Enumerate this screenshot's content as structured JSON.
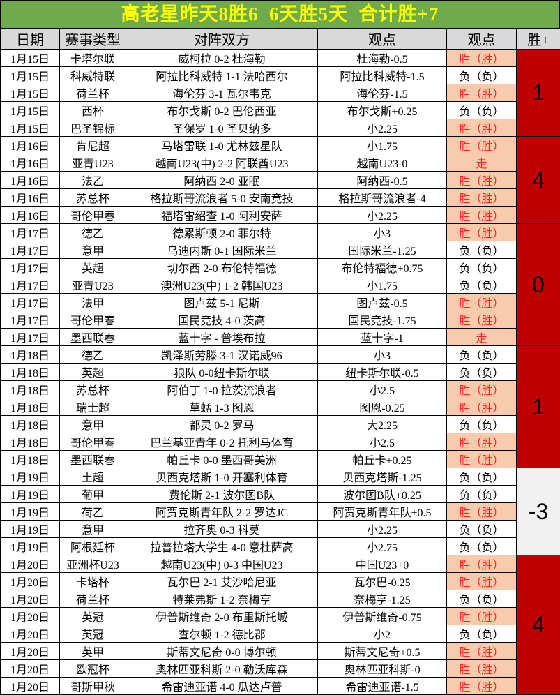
{
  "title": "高老星昨天8胜6  6天胜5天  合计胜+7",
  "colors": {
    "title_bg": "#6FAB4B",
    "title_text": "#FFFF00",
    "column_header_bg": "#D9D9D9",
    "win_cell_bg": "#F8CBAD",
    "win_cell_text": "#FF2222",
    "loss_cell_text": "#000000",
    "winplus_block_red": "#C00000",
    "winplus_block_grey": "#F0F0F0",
    "grid_line": "#000000"
  },
  "table": {
    "columns": [
      "日期",
      "赛事类型",
      "对阵双方",
      "观点",
      "观点",
      "胜+"
    ],
    "groups": [
      {
        "date": "1月15日",
        "win_plus": "1",
        "block": "red",
        "rows": [
          {
            "league": "卡塔尔联",
            "match": "威柯拉 0-2 杜海勒",
            "pick": "杜海勒-0.5",
            "result": "胜（胜）",
            "status": "win"
          },
          {
            "league": "科威特联",
            "match": "阿拉比科威特 1-1 法哈西尔",
            "pick": "阿拉比科威特-1.5",
            "result": "负（负）",
            "status": "loss"
          },
          {
            "league": "荷兰杯",
            "match": "海伦芬 3-1 瓦尔韦克",
            "pick": "海伦芬-1.5",
            "result": "胜（胜）",
            "status": "win"
          },
          {
            "league": "西杯",
            "match": "布尔戈斯 0-2 巴伦西亚",
            "pick": "布尔戈斯+0.25",
            "result": "负（负）",
            "status": "loss"
          },
          {
            "league": "巴圣锦标",
            "match": "圣保罗 1-0 圣贝纳多",
            "pick": "小2.25",
            "result": "胜（胜）",
            "status": "win"
          }
        ]
      },
      {
        "date": "1月16日",
        "win_plus": "4",
        "block": "red",
        "rows": [
          {
            "league": "肯尼超",
            "match": "马塔雷联 1-0 尤林兹星队",
            "pick": "小1.75",
            "result": "胜（胜）",
            "status": "win"
          },
          {
            "league": "亚青U23",
            "match": "越南U23(中) 2-2 阿联酋U23",
            "pick": "越南U23-0",
            "result": "走",
            "status": "push"
          },
          {
            "league": "法乙",
            "match": "阿纳西 2-0 亚眠",
            "pick": "阿纳西-0.5",
            "result": "胜（胜）",
            "status": "win"
          },
          {
            "league": "苏总杯",
            "match": "格拉斯哥流浪者 5-0 安南竞技",
            "pick": "格拉斯哥流浪者-4",
            "result": "胜（胜）",
            "status": "win"
          },
          {
            "league": "哥伦甲春",
            "match": "福塔雷绍查 1-0 阿利安萨",
            "pick": "小2.25",
            "result": "胜（胜）",
            "status": "win"
          }
        ]
      },
      {
        "date": "1月17日",
        "win_plus": "0",
        "block": "red",
        "rows": [
          {
            "league": "德乙",
            "match": "德累斯顿 2-0 菲尔特",
            "pick": "小3",
            "result": "胜（胜）",
            "status": "win"
          },
          {
            "league": "意甲",
            "match": "乌迪内斯 0-1 国际米兰",
            "pick": "国际米兰-1.25",
            "result": "负（负）",
            "status": "loss"
          },
          {
            "league": "英超",
            "match": "切尔西 2-0 布伦特福德",
            "pick": "布伦特福德+0.75",
            "result": "负（负）",
            "status": "loss"
          },
          {
            "league": "亚青U23",
            "match": "澳洲U23(中) 1-2 韩国U23",
            "pick": "小1.75",
            "result": "负（负）",
            "status": "loss"
          },
          {
            "league": "法甲",
            "match": "图卢兹 5-1 尼斯",
            "pick": "图卢兹-0.5",
            "result": "胜（胜）",
            "status": "win"
          },
          {
            "league": "哥伦甲春",
            "match": "国民竞技 4-0 茨高",
            "pick": "国民竞技-1.75",
            "result": "胜（胜）",
            "status": "win"
          },
          {
            "league": "墨西联春",
            "match": "蓝十字 - 普埃布拉",
            "pick": "蓝十字-1",
            "result": "走",
            "status": "push"
          }
        ]
      },
      {
        "date": "1月18日",
        "win_plus": "1",
        "block": "red",
        "rows": [
          {
            "league": "德乙",
            "match": "凯泽斯劳滕 3-1 汉诺威96",
            "pick": "小3",
            "result": "负（负）",
            "status": "loss"
          },
          {
            "league": "英超",
            "match": "狼队 0-0纽卡斯尔联",
            "pick": "纽卡斯尔联-0.5",
            "result": "负（负）",
            "status": "loss"
          },
          {
            "league": "苏总杯",
            "match": "阿伯丁 1-0 拉茨流浪者",
            "pick": "小2.5",
            "result": "胜（胜）",
            "status": "win"
          },
          {
            "league": "瑞士超",
            "match": "草蜢 1-3 图恩",
            "pick": "图恩-0.25",
            "result": "胜（胜）",
            "status": "win"
          },
          {
            "league": "意甲",
            "match": "都灵 0-2 罗马",
            "pick": "大2.25",
            "result": "负（负）",
            "status": "loss"
          },
          {
            "league": "哥伦甲春",
            "match": "巴兰基亚青年 0-2 托利马体育",
            "pick": "小2.5",
            "result": "胜（胜）",
            "status": "win"
          },
          {
            "league": "墨西联春",
            "match": "帕丘卡 0-0 墨西哥美洲",
            "pick": "帕丘卡+0.25",
            "result": "胜（胜）",
            "status": "win"
          }
        ]
      },
      {
        "date": "1月19日",
        "win_plus": "-3",
        "block": "grey",
        "rows": [
          {
            "league": "土超",
            "match": "贝西克塔斯 1-0 开塞利体育",
            "pick": "贝西克塔斯-1.25",
            "result": "负（负）",
            "status": "loss"
          },
          {
            "league": "葡甲",
            "match": "费伦斯 2-1 波尔图B队",
            "pick": "波尔图B队+0.25",
            "result": "负（负）",
            "status": "loss"
          },
          {
            "league": "荷乙",
            "match": "阿贾克斯青年队 2-2 罗达JC",
            "pick": "阿贾克斯青年队+0.5",
            "result": "胜（胜）",
            "status": "win"
          },
          {
            "league": "意甲",
            "match": "拉齐奥 0-3 科莫",
            "pick": "小2.25",
            "result": "负（负）",
            "status": "loss"
          },
          {
            "league": "阿根廷杯",
            "match": "拉普拉塔大学生 4-0 意杜萨高",
            "pick": "小2.75",
            "result": "负（负）",
            "status": "loss"
          }
        ]
      },
      {
        "date": "1月20日",
        "win_plus": "4",
        "block": "red",
        "rows": [
          {
            "league": "亚洲杯U23",
            "match": "越南U23(中) 0-3 中国U23",
            "pick": "中国U23+0",
            "result": "胜（胜）",
            "status": "win"
          },
          {
            "league": "卡塔杯",
            "match": "瓦尔巴 2-1 艾沙哈尼亚",
            "pick": "瓦尔巴-0.25",
            "result": "胜（胜）",
            "status": "win"
          },
          {
            "league": "荷兰杯",
            "match": "特莱弗斯 1-2 奈梅亨",
            "pick": "奈梅亨-1.25",
            "result": "负（负）",
            "status": "loss"
          },
          {
            "league": "英冠",
            "match": "伊普斯维奇 2-0 布里斯托城",
            "pick": "伊普斯维奇-0.75",
            "result": "胜（胜）",
            "status": "win"
          },
          {
            "league": "英冠",
            "match": "查尔顿 1-2 德比郡",
            "pick": "小2",
            "result": "负（负）",
            "status": "loss"
          },
          {
            "league": "英甲",
            "match": "斯蒂文尼奇 0-0 博尔顿",
            "pick": "斯蒂文尼奇+0.5",
            "result": "胜（胜）",
            "status": "win"
          },
          {
            "league": "欧冠杯",
            "match": "奥林匹亚科斯 2-0 勒沃库森",
            "pick": "奥林匹亚科斯-0",
            "result": "胜（胜）",
            "status": "win"
          },
          {
            "league": "哥斯甲秋",
            "match": "希雷迪亚诺 4-0 瓜达卢普",
            "pick": "希雷迪亚诺-1.5",
            "result": "胜（胜）",
            "status": "win"
          }
        ]
      }
    ]
  }
}
